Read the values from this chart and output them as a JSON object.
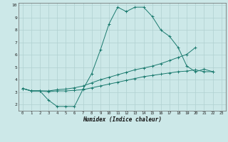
{
  "xlabel": "Humidex (Indice chaleur)",
  "bg_color": "#cce8e8",
  "grid_color": "#b0d0d0",
  "line_color": "#1a7a6e",
  "xlim": [
    -0.5,
    23.5
  ],
  "ylim": [
    1.5,
    10.2
  ],
  "xticks": [
    0,
    1,
    2,
    3,
    4,
    5,
    6,
    7,
    8,
    9,
    10,
    11,
    12,
    13,
    14,
    15,
    16,
    17,
    18,
    19,
    20,
    21,
    22,
    23
  ],
  "yticks": [
    2,
    3,
    4,
    5,
    6,
    7,
    8,
    9,
    10
  ],
  "line1_x": [
    0,
    1,
    2,
    3,
    4,
    5,
    6,
    7,
    8,
    9,
    10,
    11,
    12,
    13,
    14,
    15,
    16,
    17,
    18,
    19,
    20,
    21,
    22
  ],
  "line1_y": [
    3.3,
    3.1,
    3.1,
    2.35,
    1.85,
    1.85,
    1.85,
    3.25,
    4.5,
    6.4,
    8.5,
    9.85,
    9.5,
    9.85,
    9.85,
    9.1,
    8.0,
    7.5,
    6.6,
    5.1,
    4.65,
    4.85,
    4.65
  ],
  "line2_x": [
    0,
    1,
    2,
    3,
    4,
    5,
    6,
    7,
    8,
    9,
    10,
    11,
    12,
    13,
    14,
    15,
    16,
    17,
    18,
    19,
    20
  ],
  "line2_y": [
    3.3,
    3.1,
    3.1,
    3.1,
    3.2,
    3.25,
    3.35,
    3.5,
    3.75,
    4.0,
    4.2,
    4.4,
    4.6,
    4.8,
    4.95,
    5.1,
    5.3,
    5.55,
    5.8,
    6.05,
    6.6
  ],
  "line3_x": [
    0,
    1,
    2,
    3,
    4,
    5,
    6,
    7,
    8,
    9,
    10,
    11,
    12,
    13,
    14,
    15,
    16,
    17,
    18,
    19,
    20,
    21,
    22
  ],
  "line3_y": [
    3.3,
    3.1,
    3.1,
    3.05,
    3.1,
    3.1,
    3.15,
    3.2,
    3.35,
    3.5,
    3.65,
    3.8,
    3.95,
    4.1,
    4.25,
    4.35,
    4.45,
    4.55,
    4.65,
    4.7,
    4.8,
    4.65,
    4.65
  ]
}
